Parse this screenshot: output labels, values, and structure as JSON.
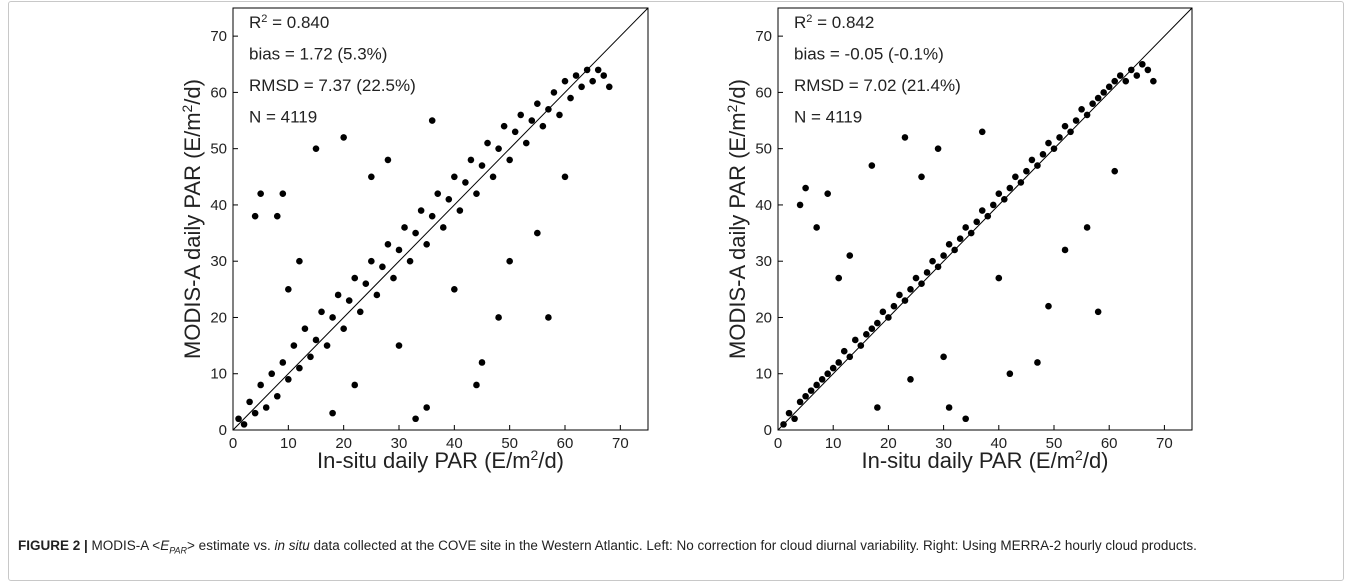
{
  "chart_data": [
    {
      "type": "scatter",
      "color": "#000000",
      "annotations": [
        [
          "R",
          "2",
          " = 0.840"
        ],
        [
          "bias = 1.72 (5.3%)"
        ],
        [
          "RMSD = 7.37 (22.5%)"
        ],
        [
          "N = 4119"
        ]
      ],
      "xlabel": [
        "In-situ daily PAR (E/m",
        "2",
        "/d)"
      ],
      "ylabel": [
        "MODIS-A daily PAR (E/m",
        "2",
        "/d)"
      ],
      "xlim": [
        0,
        75
      ],
      "ylim": [
        0,
        75
      ],
      "xticks": [
        0,
        10,
        20,
        30,
        40,
        50,
        60,
        70
      ],
      "yticks": [
        0,
        10,
        20,
        30,
        40,
        50,
        60,
        70
      ],
      "x": [
        1,
        2,
        3,
        4,
        5,
        6,
        7,
        8,
        9,
        10,
        11,
        12,
        13,
        14,
        15,
        16,
        17,
        18,
        19,
        20,
        21,
        22,
        23,
        24,
        25,
        26,
        27,
        28,
        29,
        30,
        31,
        32,
        33,
        34,
        35,
        36,
        37,
        38,
        39,
        40,
        41,
        42,
        43,
        44,
        45,
        46,
        47,
        48,
        49,
        50,
        51,
        52,
        53,
        54,
        55,
        56,
        57,
        58,
        59,
        60,
        61,
        62,
        63,
        64,
        65,
        66,
        67,
        68,
        4,
        5,
        8,
        9,
        57,
        45,
        44,
        35,
        33,
        20,
        15,
        25,
        18,
        40,
        50,
        55,
        30,
        12,
        22,
        48,
        10,
        28,
        36,
        60
      ],
      "values": [
        2,
        1,
        5,
        3,
        8,
        4,
        10,
        6,
        12,
        9,
        15,
        11,
        18,
        13,
        16,
        21,
        15,
        20,
        24,
        18,
        23,
        27,
        21,
        26,
        30,
        24,
        29,
        33,
        27,
        32,
        36,
        30,
        35,
        39,
        33,
        38,
        42,
        36,
        41,
        45,
        39,
        44,
        48,
        42,
        47,
        51,
        45,
        50,
        54,
        48,
        53,
        56,
        51,
        55,
        58,
        54,
        57,
        60,
        56,
        62,
        59,
        63,
        61,
        64,
        62,
        64,
        63,
        61,
        38,
        42,
        38,
        42,
        20,
        12,
        8,
        4,
        2,
        52,
        50,
        45,
        3,
        25,
        30,
        35,
        15,
        30,
        8,
        20,
        25,
        48,
        55,
        45
      ]
    },
    {
      "type": "scatter",
      "color": "#000000",
      "annotations": [
        [
          "R",
          "2",
          " = 0.842"
        ],
        [
          "bias = -0.05 (-0.1%)"
        ],
        [
          "RMSD = 7.02 (21.4%)"
        ],
        [
          "N = 4119"
        ]
      ],
      "xlabel": [
        "In-situ daily PAR (E/m",
        "2",
        "/d)"
      ],
      "ylabel": [
        "MODIS-A daily PAR (E/m",
        "2",
        "/d)"
      ],
      "xlim": [
        0,
        75
      ],
      "ylim": [
        0,
        75
      ],
      "xticks": [
        0,
        10,
        20,
        30,
        40,
        50,
        60,
        70
      ],
      "yticks": [
        0,
        10,
        20,
        30,
        40,
        50,
        60,
        70
      ],
      "x": [
        1,
        2,
        3,
        4,
        5,
        6,
        7,
        8,
        9,
        10,
        11,
        12,
        13,
        14,
        15,
        16,
        17,
        18,
        19,
        20,
        21,
        22,
        23,
        24,
        25,
        26,
        27,
        28,
        29,
        30,
        31,
        32,
        33,
        34,
        35,
        36,
        37,
        38,
        39,
        40,
        41,
        42,
        43,
        44,
        45,
        46,
        47,
        48,
        49,
        50,
        51,
        52,
        53,
        54,
        55,
        56,
        57,
        58,
        59,
        60,
        61,
        62,
        63,
        64,
        65,
        66,
        67,
        68,
        4,
        5,
        7,
        9,
        58,
        47,
        42,
        34,
        31,
        23,
        17,
        26,
        18,
        40,
        52,
        56,
        30,
        13,
        24,
        49,
        11,
        29,
        37,
        61
      ],
      "values": [
        1,
        3,
        2,
        5,
        6,
        7,
        8,
        9,
        10,
        11,
        12,
        14,
        13,
        16,
        15,
        17,
        18,
        19,
        21,
        20,
        22,
        24,
        23,
        25,
        27,
        26,
        28,
        30,
        29,
        31,
        33,
        32,
        34,
        36,
        35,
        37,
        39,
        38,
        40,
        42,
        41,
        43,
        45,
        44,
        46,
        48,
        47,
        49,
        51,
        50,
        52,
        54,
        53,
        55,
        57,
        56,
        58,
        59,
        60,
        61,
        62,
        63,
        62,
        64,
        63,
        65,
        64,
        62,
        40,
        43,
        36,
        42,
        21,
        12,
        10,
        2,
        4,
        52,
        47,
        45,
        4,
        27,
        32,
        36,
        13,
        31,
        9,
        22,
        27,
        50,
        53,
        46
      ]
    }
  ],
  "caption": [
    {
      "text": "FIGURE 2 | ",
      "style": "bold"
    },
    {
      "text": "MODIS-A <",
      "style": "normal"
    },
    {
      "text": "E",
      "style": "italic"
    },
    {
      "text": "PAR",
      "style": "sub"
    },
    {
      "text": "> estimate vs. ",
      "style": "normal"
    },
    {
      "text": "in situ",
      "style": "italic"
    },
    {
      "text": " data collected at the COVE site in the Western Atlantic. Left: No correction for cloud diurnal variability. Right: Using MERRA-2 hourly cloud products.",
      "style": "normal"
    }
  ]
}
